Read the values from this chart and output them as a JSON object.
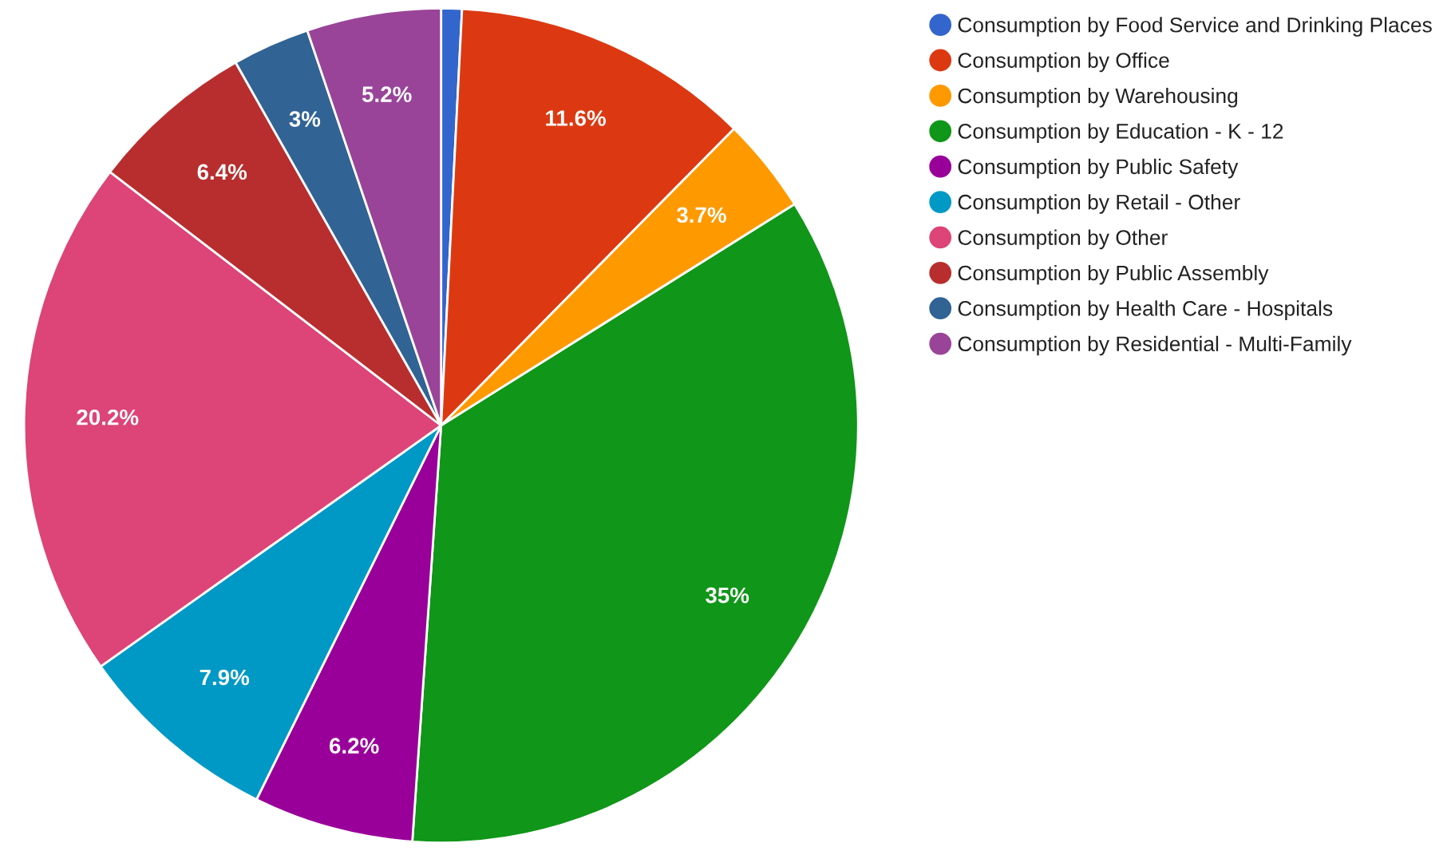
{
  "chart_data": {
    "type": "pie",
    "categories": [
      "Consumption by Food Service and Drinking Places",
      "Consumption by Office",
      "Consumption by Warehousing",
      "Consumption by Education - K - 12",
      "Consumption by Public Safety",
      "Consumption by Retail - Other",
      "Consumption by Other",
      "Consumption by Public Assembly",
      "Consumption by Health Care - Hospitals",
      "Consumption by Residential - Multi-Family"
    ],
    "values": [
      0.8,
      11.6,
      3.7,
      35,
      6.2,
      7.9,
      20.2,
      6.4,
      3,
      5.2
    ],
    "value_labels": [
      null,
      "11.6%",
      "3.7%",
      "35%",
      "6.2%",
      "7.9%",
      "20.2%",
      "6.4%",
      "3%",
      "5.2%"
    ],
    "colors": [
      "#3366cc",
      "#dc3912",
      "#ff9900",
      "#109618",
      "#990099",
      "#0099c6",
      "#dd4477",
      "#b82e2e",
      "#316395",
      "#994499"
    ],
    "legend": "top right"
  }
}
